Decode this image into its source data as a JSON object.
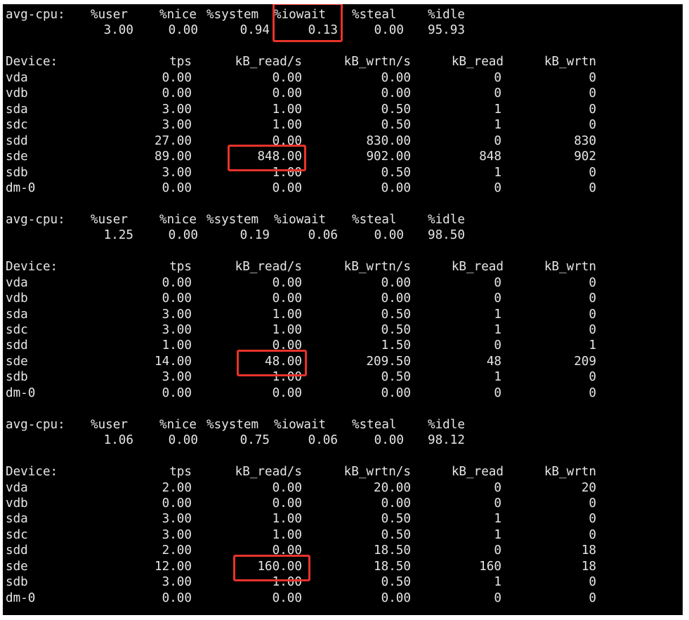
{
  "colors": {
    "background": "#000000",
    "text": "#e6e6e6",
    "highlight": "#e8332a"
  },
  "cpu_headers": [
    "avg-cpu:",
    "%user",
    "%nice",
    "%system",
    "%iowait",
    "%steal",
    "%idle"
  ],
  "device_headers": [
    "Device:",
    "tps",
    "kB_read/s",
    "kB_wrtn/s",
    "kB_read",
    "kB_wrtn"
  ],
  "reports": [
    {
      "cpu": [
        "3.00",
        "0.00",
        "0.94",
        "0.13",
        "0.00",
        "95.93"
      ],
      "devices": [
        [
          "vda",
          "0.00",
          "0.00",
          "0.00",
          "0",
          "0"
        ],
        [
          "vdb",
          "0.00",
          "0.00",
          "0.00",
          "0",
          "0"
        ],
        [
          "sda",
          "3.00",
          "1.00",
          "0.50",
          "1",
          "0"
        ],
        [
          "sdc",
          "3.00",
          "1.00",
          "0.50",
          "1",
          "0"
        ],
        [
          "sdd",
          "27.00",
          "0.00",
          "830.00",
          "0",
          "830"
        ],
        [
          "sde",
          "89.00",
          "848.00",
          "902.00",
          "848",
          "902"
        ],
        [
          "sdb",
          "3.00",
          "1.00",
          "0.50",
          "1",
          "0"
        ],
        [
          "dm-0",
          "0.00",
          "0.00",
          "0.00",
          "0",
          "0"
        ]
      ]
    },
    {
      "cpu": [
        "1.25",
        "0.00",
        "0.19",
        "0.06",
        "0.00",
        "98.50"
      ],
      "devices": [
        [
          "vda",
          "0.00",
          "0.00",
          "0.00",
          "0",
          "0"
        ],
        [
          "vdb",
          "0.00",
          "0.00",
          "0.00",
          "0",
          "0"
        ],
        [
          "sda",
          "3.00",
          "1.00",
          "0.50",
          "1",
          "0"
        ],
        [
          "sdc",
          "3.00",
          "1.00",
          "0.50",
          "1",
          "0"
        ],
        [
          "sdd",
          "1.00",
          "0.00",
          "1.50",
          "0",
          "1"
        ],
        [
          "sde",
          "14.00",
          "48.00",
          "209.50",
          "48",
          "209"
        ],
        [
          "sdb",
          "3.00",
          "1.00",
          "0.50",
          "1",
          "0"
        ],
        [
          "dm-0",
          "0.00",
          "0.00",
          "0.00",
          "0",
          "0"
        ]
      ]
    },
    {
      "cpu": [
        "1.06",
        "0.00",
        "0.75",
        "0.06",
        "0.00",
        "98.12"
      ],
      "devices": [
        [
          "vda",
          "2.00",
          "0.00",
          "20.00",
          "0",
          "20"
        ],
        [
          "vdb",
          "0.00",
          "0.00",
          "0.00",
          "0",
          "0"
        ],
        [
          "sda",
          "3.00",
          "1.00",
          "0.50",
          "1",
          "0"
        ],
        [
          "sdc",
          "3.00",
          "1.00",
          "0.50",
          "1",
          "0"
        ],
        [
          "sdd",
          "2.00",
          "0.00",
          "18.50",
          "0",
          "18"
        ],
        [
          "sde",
          "12.00",
          "160.00",
          "18.50",
          "160",
          "18"
        ],
        [
          "sdb",
          "3.00",
          "1.00",
          "0.50",
          "1",
          "0"
        ],
        [
          "dm-0",
          "0.00",
          "0.00",
          "0.00",
          "0",
          "0"
        ]
      ]
    }
  ]
}
